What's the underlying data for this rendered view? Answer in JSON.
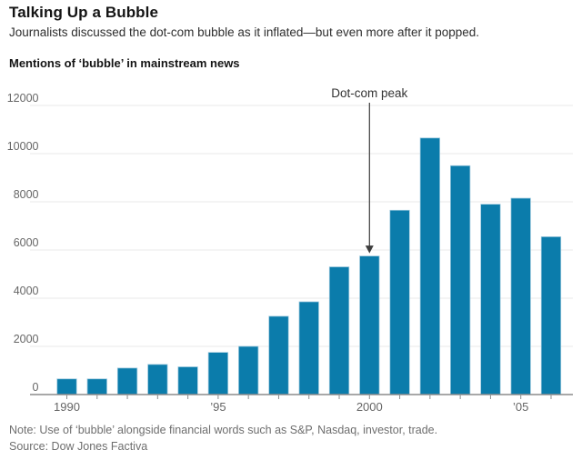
{
  "header": {
    "title": "Talking Up a Bubble",
    "subtitle": "Journalists discussed the dot-com bubble as it inflated—but even more after it popped."
  },
  "section_label": "Mentions of ‘bubble’ in mainstream news",
  "footer": {
    "note": "Note: Use of ‘bubble’ alongside financial words such as S&P, Nasdaq, investor, trade.",
    "source": "Source: Dow Jones Factiva"
  },
  "colors": {
    "bar": "#0b7cab",
    "bar_edge": "#9ec9de",
    "grid": "#e9e9e9",
    "axis": "#8c8c8c",
    "tick_label": "#666666",
    "annotation_text": "#333333",
    "arrow": "#3d3d3d"
  },
  "chart_data": {
    "type": "bar",
    "title": "Mentions of ‘bubble’ in mainstream news",
    "xlabel": "",
    "ylabel": "",
    "categories": [
      1990,
      1991,
      1992,
      1993,
      1994,
      1995,
      1996,
      1997,
      1998,
      1999,
      2000,
      2001,
      2002,
      2003,
      2004,
      2005,
      2006
    ],
    "values": [
      650,
      650,
      1100,
      1250,
      1150,
      1750,
      2000,
      3250,
      3850,
      5300,
      5750,
      7650,
      10650,
      9500,
      7900,
      8150,
      6550
    ],
    "ylim": [
      0,
      12000
    ],
    "ytick_step": 2000,
    "yticklabels": [
      "0",
      "2000",
      "4000",
      "6000",
      "8000",
      "10000",
      "12000"
    ],
    "xticks": [
      {
        "year": 1990,
        "label": "1990"
      },
      {
        "year": 1995,
        "label": "’95"
      },
      {
        "year": 2000,
        "label": "2000"
      },
      {
        "year": 2005,
        "label": "’05"
      }
    ],
    "grid": true,
    "legend": "none",
    "annotation": {
      "label": "Dot-com peak",
      "target_year": 2000,
      "target_value": 5750
    }
  }
}
